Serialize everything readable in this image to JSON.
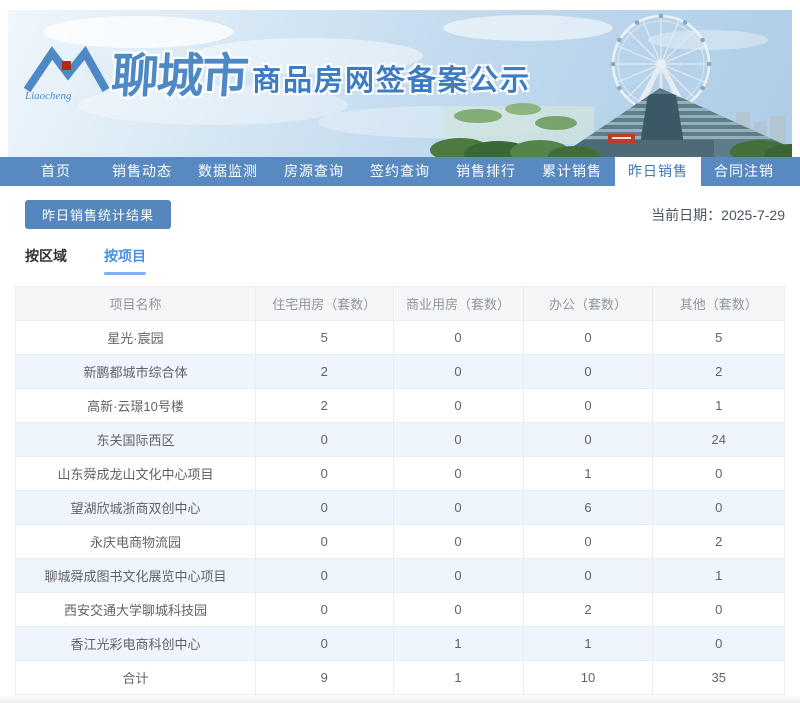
{
  "header": {
    "logo_script": "Liaocheng",
    "city_name": "聊城市",
    "site_title": "商品房网签备案公示"
  },
  "nav": {
    "items": [
      {
        "key": "home",
        "label": "首页",
        "active": false
      },
      {
        "key": "sales-dynamics",
        "label": "销售动态",
        "active": false
      },
      {
        "key": "data-monitoring",
        "label": "数据监测",
        "active": false
      },
      {
        "key": "listing-query",
        "label": "房源查询",
        "active": false
      },
      {
        "key": "signing-query",
        "label": "签约查询",
        "active": false
      },
      {
        "key": "sales-ranking",
        "label": "销售排行",
        "active": false
      },
      {
        "key": "cumulative-sales",
        "label": "累计销售",
        "active": false
      },
      {
        "key": "yesterday-sales",
        "label": "昨日销售",
        "active": true
      },
      {
        "key": "contract-cancellation",
        "label": "合同注销",
        "active": false
      }
    ]
  },
  "toolbar": {
    "report_button_label": "昨日销售统计结果",
    "date_label": "当前日期：",
    "date_value": "2025-7-29"
  },
  "view_tabs": [
    {
      "key": "by-region",
      "label": "按区域",
      "active": false
    },
    {
      "key": "by-project",
      "label": "按项目",
      "active": true
    }
  ],
  "table": {
    "columns": [
      "项目名称",
      "住宅用房（套数）",
      "商业用房（套数）",
      "办公（套数）",
      "其他（套数）"
    ],
    "rows": [
      [
        "星光·宸园",
        "5",
        "0",
        "0",
        "5"
      ],
      [
        "新鹏都城市综合体",
        "2",
        "0",
        "0",
        "2"
      ],
      [
        "高新·云璟10号楼",
        "2",
        "0",
        "0",
        "1"
      ],
      [
        "东关国际西区",
        "0",
        "0",
        "0",
        "24"
      ],
      [
        "山东舜成龙山文化中心项目",
        "0",
        "0",
        "1",
        "0"
      ],
      [
        "望湖欣城浙商双创中心",
        "0",
        "0",
        "6",
        "0"
      ],
      [
        "永庆电商物流园",
        "0",
        "0",
        "0",
        "2"
      ],
      [
        "聊城舜成图书文化展览中心项目",
        "0",
        "0",
        "0",
        "1"
      ],
      [
        "西安交通大学聊城科技园",
        "0",
        "0",
        "2",
        "0"
      ],
      [
        "香江光彩电商科创中心",
        "0",
        "1",
        "1",
        "0"
      ],
      [
        "合计",
        "9",
        "1",
        "10",
        "35"
      ]
    ]
  },
  "colors": {
    "nav-blue": "#5889c0",
    "active-tab-text": "#3f78b5",
    "button-blue": "#5586bd",
    "title-blue": "#3d7cc3",
    "logo-blue": "#4f89c5",
    "logo-red": "#b5271d",
    "subtab-active": "#4a90e2",
    "subtab-underline": "#7db1f5",
    "stripe-blue": "#eef5fc",
    "table-border": "#e9ecf0",
    "table-header-bg": "#f5f6f7",
    "table-header-text": "#8f959e",
    "cell-text": "#606266",
    "date-text": "#4d5460"
  }
}
